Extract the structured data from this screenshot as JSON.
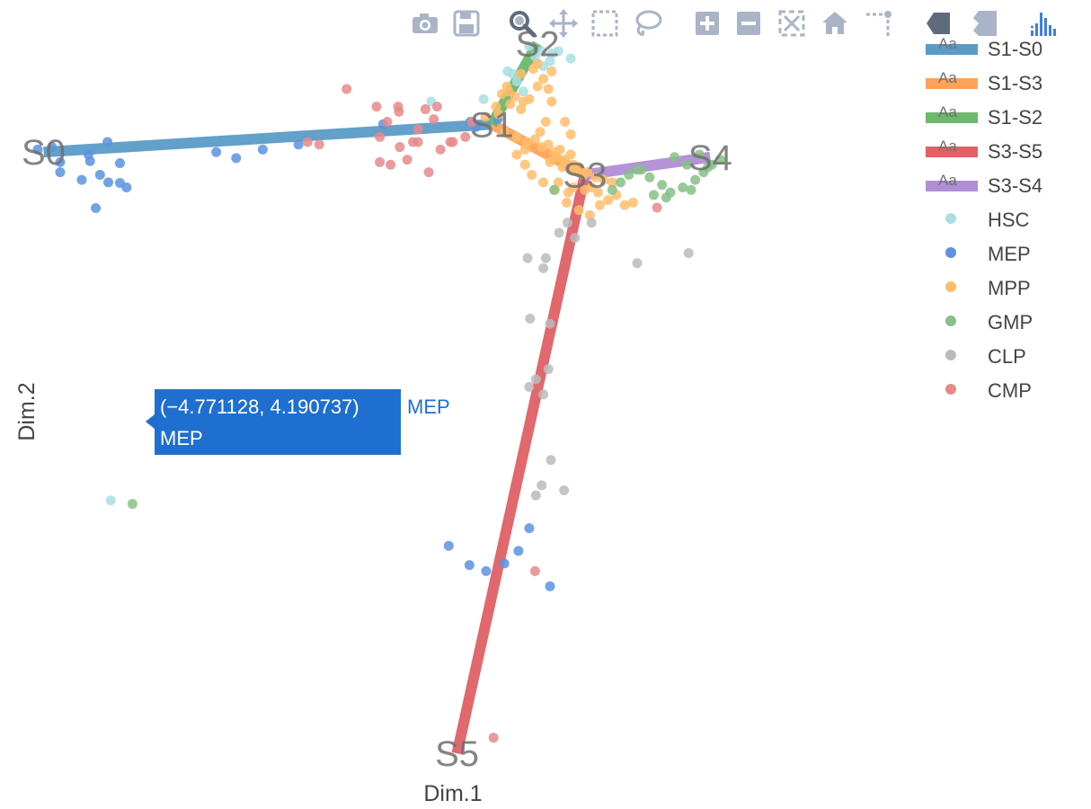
{
  "modebar": {
    "buttons": [
      {
        "name": "camera-icon",
        "label": "Download plot as a png"
      },
      {
        "name": "save-icon",
        "label": "Save"
      },
      {
        "name": "zoom-icon",
        "label": "Zoom",
        "active": true
      },
      {
        "name": "pan-icon",
        "label": "Pan"
      },
      {
        "name": "box-select-icon",
        "label": "Box Select"
      },
      {
        "name": "lasso-select-icon",
        "label": "Lasso Select"
      },
      {
        "name": "zoom-in-icon",
        "label": "Zoom in"
      },
      {
        "name": "zoom-out-icon",
        "label": "Zoom out"
      },
      {
        "name": "autoscale-icon",
        "label": "Autoscale"
      },
      {
        "name": "reset-axes-icon",
        "label": "Reset axes"
      },
      {
        "name": "spike-lines-icon",
        "label": "Toggle Spike Lines"
      },
      {
        "name": "hover-closest-icon",
        "label": "Show closest data on hover",
        "active": true
      },
      {
        "name": "hover-compare-icon",
        "label": "Compare data on hover"
      },
      {
        "name": "plotly-logo-icon",
        "label": "Produced with Plotly"
      }
    ]
  },
  "hover": {
    "coords": "(−4.771128, 4.190737)",
    "name": "MEP",
    "trace": "MEP",
    "color": "#1f6fd1"
  },
  "chart_data": {
    "type": "scatter",
    "xlabel": "Dim.1",
    "ylabel": "Dim.2",
    "xlim": [
      -5.6,
      4.9
    ],
    "ylim": [
      -7.0,
      7.6
    ],
    "grid": false,
    "legend_position": "top-right",
    "legend_marker_text": "Aa",
    "line_series": [
      {
        "name": "S1-S0",
        "color": "#5b9bc8",
        "x": [
          0.0,
          -5.4
        ],
        "y": [
          5.85,
          5.3
        ]
      },
      {
        "name": "S1-S3",
        "color": "#ffa25a",
        "x": [
          0.0,
          1.12
        ],
        "y": [
          5.85,
          4.85
        ]
      },
      {
        "name": "S1-S2",
        "color": "#6cb86c",
        "x": [
          0.0,
          0.55
        ],
        "y": [
          5.85,
          7.45
        ]
      },
      {
        "name": "S3-S5",
        "color": "#e06066",
        "x": [
          1.12,
          -0.42
        ],
        "y": [
          4.85,
          -6.61
        ]
      },
      {
        "name": "S3-S4",
        "color": "#b08ed6",
        "x": [
          1.12,
          2.63
        ],
        "y": [
          4.85,
          5.2
        ]
      }
    ],
    "state_labels": [
      {
        "text": "S0",
        "x": -5.4,
        "y": 5.3
      },
      {
        "text": "S1",
        "x": 0.0,
        "y": 5.85
      },
      {
        "text": "S2",
        "x": 0.55,
        "y": 7.45
      },
      {
        "text": "S3",
        "x": 1.12,
        "y": 4.85
      },
      {
        "text": "S4",
        "x": 2.63,
        "y": 5.2
      },
      {
        "text": "S5",
        "x": -0.42,
        "y": -6.61
      }
    ],
    "point_series": [
      {
        "name": "HSC",
        "color": "#a8dfe3",
        "x": [
          0.19,
          0.3,
          0.45,
          0.52,
          0.6,
          0.7,
          0.8,
          0.95,
          -0.73,
          0.38,
          0.25,
          -0.1,
          0.62,
          0.72,
          0.55,
          -4.59
        ],
        "y": [
          6.9,
          6.7,
          7.4,
          7.2,
          7.3,
          7.1,
          7.3,
          7.15,
          6.3,
          6.5,
          6.85,
          6.35,
          7.0,
          7.25,
          7.05,
          -1.6
        ]
      },
      {
        "name": "MEP",
        "color": "#5b93e0",
        "x": [
          -5.2,
          -4.86,
          -4.62,
          -5.2,
          -4.63,
          -4.48,
          -5.3,
          -5.47,
          -4.72,
          -4.94,
          -4.48,
          -3.32,
          -4.84,
          -1.31,
          -2.33,
          -2.76,
          -3.08,
          -0.07,
          0.45,
          0.15,
          -0.52,
          -0.27,
          0.7,
          0.32,
          0.07,
          -0.19,
          -0.26,
          -4.4,
          -4.771128
        ],
        "y": [
          4.9,
          5.25,
          4.7,
          5.1,
          5.5,
          5.08,
          5.4,
          5.35,
          4.85,
          4.75,
          4.69,
          5.3,
          5.12,
          5.85,
          5.45,
          5.35,
          5.18,
          -3.0,
          -2.15,
          -2.85,
          -2.5,
          -2.88,
          -3.3,
          -2.6,
          5.95,
          5.8,
          5.9,
          4.6,
          4.190737
        ]
      },
      {
        "name": "MPP",
        "color": "#ffbd6b",
        "x": [
          0.08,
          0.22,
          0.35,
          0.12,
          0.28,
          0.45,
          0.55,
          0.62,
          0.72,
          0.5,
          0.35,
          0.18,
          0.05,
          -0.08,
          0.15,
          0.3,
          0.42,
          0.6,
          0.75,
          0.88,
          0.98,
          1.05,
          1.15,
          1.25,
          1.35,
          1.45,
          0.95,
          0.82,
          0.68,
          0.52,
          0.4,
          0.7,
          0.85,
          1.0,
          1.1,
          1.2,
          0.92,
          0.76,
          0.62,
          0.48,
          0.9,
          1.05,
          1.18,
          1.3,
          1.4,
          1.5,
          0.8,
          0.98,
          1.12,
          1.28,
          0.58,
          0.65,
          0.3,
          0.4,
          0.78,
          1.6,
          1.7,
          0.88,
          0.95,
          0.2,
          0.38,
          0.55,
          0.68,
          0.72
        ],
        "y": [
          6.05,
          6.25,
          6.15,
          6.45,
          6.4,
          6.35,
          6.6,
          6.75,
          6.9,
          6.95,
          6.85,
          6.6,
          6.2,
          6.0,
          5.7,
          5.6,
          5.5,
          5.4,
          5.3,
          5.15,
          5.05,
          5.0,
          4.9,
          4.8,
          4.75,
          4.7,
          5.25,
          5.35,
          5.45,
          5.55,
          5.35,
          5.1,
          5.0,
          4.95,
          4.85,
          4.6,
          4.5,
          4.55,
          4.7,
          4.85,
          4.3,
          4.15,
          4.05,
          4.25,
          4.35,
          4.45,
          4.7,
          4.6,
          4.55,
          4.5,
          5.7,
          5.9,
          5.25,
          5.05,
          5.2,
          4.25,
          4.3,
          5.9,
          5.65,
          6.5,
          6.3,
          7.05,
          6.55,
          6.3
        ]
      },
      {
        "name": "GMP",
        "color": "#86c186",
        "x": [
          1.45,
          1.55,
          1.65,
          1.8,
          1.9,
          2.05,
          2.15,
          2.3,
          2.45,
          2.55,
          2.65,
          2.75,
          2.2,
          2.35,
          2.5,
          2.6,
          1.95,
          2.1,
          2.4,
          0.75,
          1.75,
          -4.33
        ],
        "y": [
          4.55,
          4.7,
          4.85,
          4.95,
          4.8,
          4.65,
          4.5,
          4.6,
          4.75,
          4.9,
          5.05,
          5.15,
          5.2,
          5.05,
          5.25,
          5.0,
          4.45,
          4.4,
          4.55,
          4.55,
          4.95,
          -1.67
        ]
      },
      {
        "name": "CLP",
        "color": "#bbbbbb",
        "x": [
          0.91,
          0.81,
          1.0,
          1.2,
          0.65,
          0.43,
          0.62,
          0.7,
          0.46,
          0.68,
          0.53,
          0.45,
          0.62,
          0.71,
          0.53,
          0.87,
          0.6,
          1.75,
          2.37
        ],
        "y": [
          3.9,
          3.7,
          3.6,
          3.9,
          3.2,
          3.2,
          3.0,
          1.9,
          2.0,
          1.0,
          0.8,
          0.65,
          0.5,
          -0.8,
          -1.5,
          -1.4,
          -1.3,
          3.1,
          3.3
        ]
      },
      {
        "name": "CMP",
        "color": "#e88989",
        "x": [
          -1.75,
          -1.39,
          -1.12,
          -1.13,
          -1.26,
          -0.66,
          -0.8,
          -0.7,
          -0.89,
          -0.89,
          -1.35,
          -1.11,
          -2.08,
          -2.22,
          -1.02,
          -0.5,
          -0.62,
          -1.22,
          -1.35,
          -0.76,
          -0.95,
          -0.24,
          -0.32,
          -0.47,
          1.99,
          0.52,
          0.02
        ],
        "y": [
          6.55,
          6.2,
          6.1,
          6.2,
          5.9,
          6.2,
          6.15,
          5.95,
          5.75,
          5.5,
          5.6,
          5.4,
          5.45,
          5.5,
          5.15,
          5.5,
          5.35,
          5.05,
          5.1,
          4.9,
          5.5,
          5.9,
          5.6,
          5.5,
          4.2,
          -3.0,
          -6.3
        ]
      }
    ]
  }
}
